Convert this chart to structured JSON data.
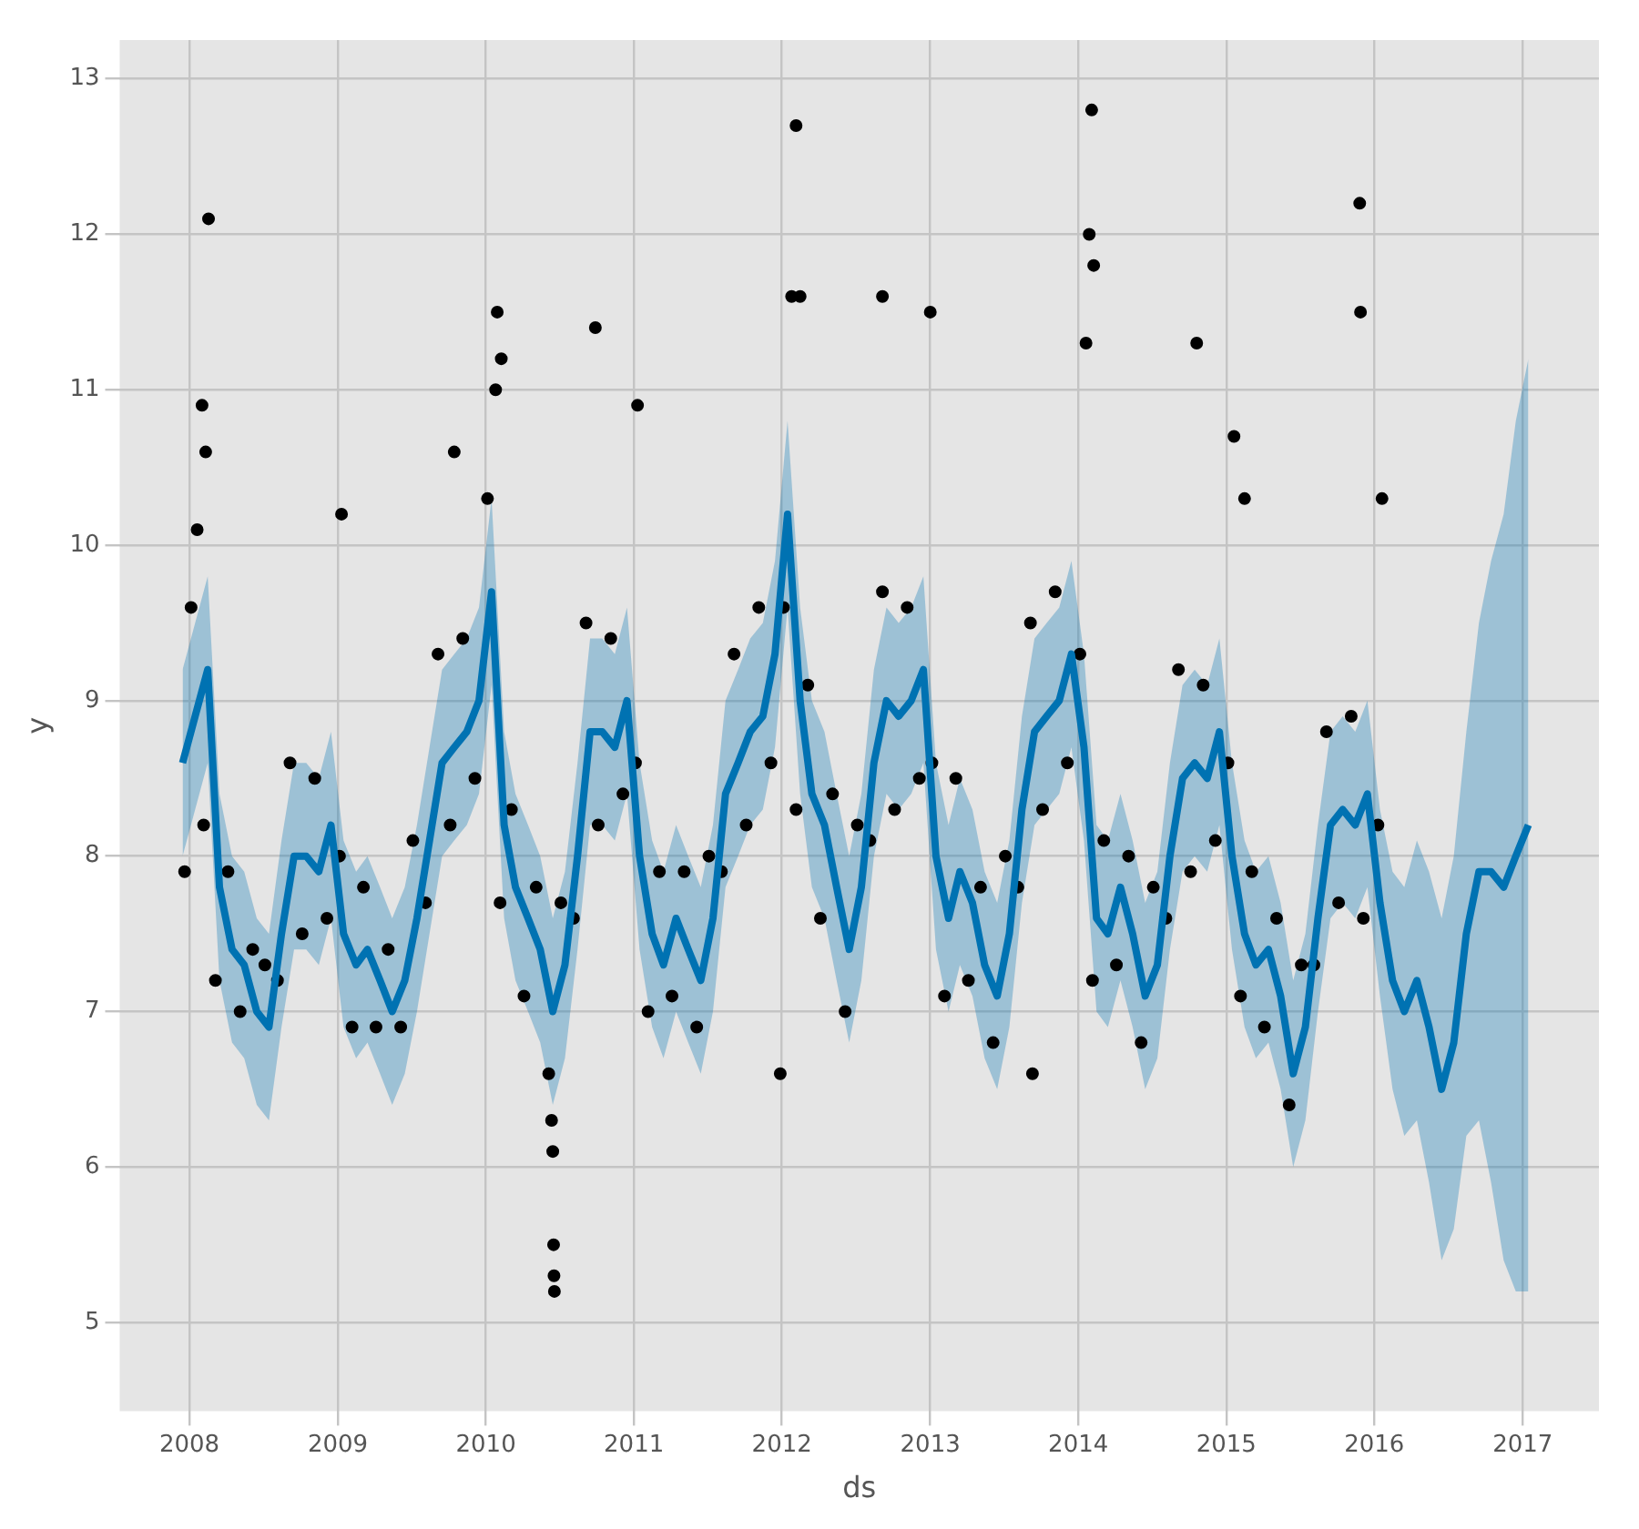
{
  "chart_data": {
    "type": "line",
    "xlabel": "ds",
    "ylabel": "y",
    "xlim": [
      "2007-07-13",
      "2017-07-08"
    ],
    "ylim": [
      4.43,
      13.25
    ],
    "xticks": [
      "2008",
      "2009",
      "2010",
      "2011",
      "2012",
      "2013",
      "2014",
      "2015",
      "2016",
      "2017"
    ],
    "yticks": [
      5,
      6,
      7,
      8,
      9,
      10,
      11,
      12,
      13
    ],
    "grid": true,
    "series": [
      {
        "color": "#0072b2",
        "marker": "none",
        "x": [
          "2007-12-15",
          "2008-01-15",
          "2008-02-15",
          "2008-03-15",
          "2008-04-15",
          "2008-05-15",
          "2008-06-15",
          "2008-07-15",
          "2008-08-15",
          "2008-09-15",
          "2008-10-15",
          "2008-11-15",
          "2008-12-15",
          "2009-01-15",
          "2009-02-15",
          "2009-03-15",
          "2009-04-15",
          "2009-05-15",
          "2009-06-15",
          "2009-07-15",
          "2009-08-15",
          "2009-09-15",
          "2009-10-15",
          "2009-11-15",
          "2009-12-15",
          "2010-01-15",
          "2010-02-15",
          "2010-03-15",
          "2010-04-15",
          "2010-05-15",
          "2010-06-15",
          "2010-07-15",
          "2010-08-15",
          "2010-09-15",
          "2010-10-15",
          "2010-11-15",
          "2010-12-15",
          "2011-01-15",
          "2011-02-15",
          "2011-03-15",
          "2011-04-15",
          "2011-05-15",
          "2011-06-15",
          "2011-07-15",
          "2011-08-15",
          "2011-09-15",
          "2011-10-15",
          "2011-11-15",
          "2011-12-15",
          "2012-01-15",
          "2012-02-15",
          "2012-03-15",
          "2012-04-15",
          "2012-05-15",
          "2012-06-15",
          "2012-07-15",
          "2012-08-15",
          "2012-09-15",
          "2012-10-15",
          "2012-11-15",
          "2012-12-15",
          "2013-01-15",
          "2013-02-15",
          "2013-03-15",
          "2013-04-15",
          "2013-05-15",
          "2013-06-15",
          "2013-07-15",
          "2013-08-15",
          "2013-09-15",
          "2013-10-15",
          "2013-11-15",
          "2013-12-15",
          "2014-01-15",
          "2014-02-15",
          "2014-03-15",
          "2014-04-15",
          "2014-05-15",
          "2014-06-15",
          "2014-07-15",
          "2014-08-15",
          "2014-09-15",
          "2014-10-15",
          "2014-11-15",
          "2014-12-15",
          "2015-01-15",
          "2015-02-15",
          "2015-03-15",
          "2015-04-15",
          "2015-05-15",
          "2015-06-15",
          "2015-07-15",
          "2015-08-15",
          "2015-09-15",
          "2015-10-15",
          "2015-11-15",
          "2015-12-15",
          "2016-01-15",
          "2016-02-15",
          "2016-03-15",
          "2016-04-15",
          "2016-05-15",
          "2016-06-15",
          "2016-07-15",
          "2016-08-15",
          "2016-09-15",
          "2016-10-15",
          "2016-11-15",
          "2016-12-15",
          "2017-01-15"
        ],
        "values": [
          8.6,
          8.9,
          9.2,
          7.8,
          7.4,
          7.3,
          7.0,
          6.9,
          7.5,
          8.0,
          8.0,
          7.9,
          8.2,
          7.5,
          7.3,
          7.4,
          7.2,
          7.0,
          7.2,
          7.6,
          8.1,
          8.6,
          8.7,
          8.8,
          9.0,
          9.7,
          8.2,
          7.8,
          7.6,
          7.4,
          7.0,
          7.3,
          8.0,
          8.8,
          8.8,
          8.7,
          9.0,
          8.0,
          7.5,
          7.3,
          7.6,
          7.4,
          7.2,
          7.6,
          8.4,
          8.6,
          8.8,
          8.9,
          9.3,
          10.2,
          9.0,
          8.4,
          8.2,
          7.8,
          7.4,
          7.8,
          8.6,
          9.0,
          8.9,
          9.0,
          9.2,
          8.0,
          7.6,
          7.9,
          7.7,
          7.3,
          7.1,
          7.5,
          8.3,
          8.8,
          8.9,
          9.0,
          9.3,
          8.7,
          7.6,
          7.5,
          7.8,
          7.5,
          7.1,
          7.3,
          8.0,
          8.5,
          8.6,
          8.5,
          8.8,
          8.0,
          7.5,
          7.3,
          7.4,
          7.1,
          6.6,
          6.9,
          7.6,
          8.2,
          8.3,
          8.2,
          8.4,
          7.7,
          7.2,
          7.0,
          7.2,
          6.9,
          6.5,
          6.8,
          7.5,
          7.9,
          7.9,
          7.8,
          8.0,
          8.2
        ],
        "lower": [
          8.0,
          8.3,
          8.6,
          7.2,
          6.8,
          6.7,
          6.4,
          6.3,
          6.9,
          7.4,
          7.4,
          7.3,
          7.6,
          6.9,
          6.7,
          6.8,
          6.6,
          6.4,
          6.6,
          7.0,
          7.5,
          8.0,
          8.1,
          8.2,
          8.4,
          9.1,
          7.6,
          7.2,
          7.0,
          6.8,
          6.4,
          6.7,
          7.4,
          8.2,
          8.2,
          8.1,
          8.4,
          7.4,
          6.9,
          6.7,
          7.0,
          6.8,
          6.6,
          7.0,
          7.8,
          8.0,
          8.2,
          8.3,
          8.7,
          9.6,
          8.4,
          7.8,
          7.6,
          7.2,
          6.8,
          7.2,
          8.0,
          8.4,
          8.3,
          8.4,
          8.6,
          7.4,
          7.0,
          7.3,
          7.1,
          6.7,
          6.5,
          6.9,
          7.7,
          8.2,
          8.3,
          8.4,
          8.7,
          8.1,
          7.0,
          6.9,
          7.2,
          6.9,
          6.5,
          6.7,
          7.4,
          7.9,
          8.0,
          7.9,
          8.2,
          7.4,
          6.9,
          6.7,
          6.8,
          6.5,
          6.0,
          6.3,
          7.0,
          7.6,
          7.7,
          7.6,
          7.8,
          7.1,
          6.5,
          6.2,
          6.3,
          5.9,
          5.4,
          5.6,
          6.2,
          6.3,
          5.9,
          5.4,
          5.2,
          5.2
        ],
        "upper": [
          9.2,
          9.5,
          9.8,
          8.4,
          8.0,
          7.9,
          7.6,
          7.5,
          8.1,
          8.6,
          8.6,
          8.5,
          8.8,
          8.1,
          7.9,
          8.0,
          7.8,
          7.6,
          7.8,
          8.2,
          8.7,
          9.2,
          9.3,
          9.4,
          9.6,
          10.3,
          8.8,
          8.4,
          8.2,
          8.0,
          7.6,
          7.9,
          8.6,
          9.4,
          9.4,
          9.3,
          9.6,
          8.6,
          8.1,
          7.9,
          8.2,
          8.0,
          7.8,
          8.2,
          9.0,
          9.2,
          9.4,
          9.5,
          9.9,
          10.8,
          9.6,
          9.0,
          8.8,
          8.4,
          8.0,
          8.4,
          9.2,
          9.6,
          9.5,
          9.6,
          9.8,
          8.6,
          8.2,
          8.5,
          8.3,
          7.9,
          7.7,
          8.1,
          8.9,
          9.4,
          9.5,
          9.6,
          9.9,
          9.3,
          8.2,
          8.1,
          8.4,
          8.1,
          7.7,
          7.9,
          8.6,
          9.1,
          9.2,
          9.1,
          9.4,
          8.6,
          8.1,
          7.9,
          8.0,
          7.7,
          7.2,
          7.5,
          8.2,
          8.8,
          8.9,
          8.8,
          9.0,
          8.3,
          7.9,
          7.8,
          8.1,
          7.9,
          7.6,
          8.0,
          8.8,
          9.5,
          9.9,
          10.2,
          10.8,
          11.2
        ]
      },
      {
        "type": "scatter",
        "color": "#000000",
        "marker": "circle",
        "x": [
          "2007-12-20",
          "2008-01-05",
          "2008-02-05",
          "2008-03-05",
          "2008-04-05",
          "2008-05-05",
          "2008-06-05",
          "2008-07-05",
          "2008-08-05",
          "2008-09-05",
          "2008-10-05",
          "2008-11-05",
          "2008-12-05",
          "2009-01-05",
          "2009-02-05",
          "2009-03-05",
          "2009-04-05",
          "2009-05-05",
          "2009-06-05",
          "2009-07-05",
          "2009-08-05",
          "2009-09-05",
          "2009-10-05",
          "2009-11-05",
          "2009-12-05",
          "2010-01-05",
          "2010-02-05",
          "2010-03-05",
          "2010-04-05",
          "2010-05-05",
          "2010-06-05",
          "2010-07-05",
          "2010-08-05",
          "2010-09-05",
          "2010-10-05",
          "2010-11-05",
          "2010-12-05",
          "2011-01-05",
          "2011-02-05",
          "2011-03-05",
          "2011-04-05",
          "2011-05-05",
          "2011-06-05",
          "2011-07-05",
          "2011-08-05",
          "2011-09-05",
          "2011-10-05",
          "2011-11-05",
          "2011-12-05",
          "2012-01-05",
          "2012-02-05",
          "2012-03-05",
          "2012-04-05",
          "2012-05-05",
          "2012-06-05",
          "2012-07-05",
          "2012-08-05",
          "2012-09-05",
          "2012-10-05",
          "2012-11-05",
          "2012-12-05",
          "2013-01-05",
          "2013-02-05",
          "2013-03-05",
          "2013-04-05",
          "2013-05-05",
          "2013-06-05",
          "2013-07-05",
          "2013-08-05",
          "2013-09-05",
          "2013-10-05",
          "2013-11-05",
          "2013-12-05",
          "2014-01-05",
          "2014-02-05",
          "2014-03-05",
          "2014-04-05",
          "2014-05-05",
          "2014-06-05",
          "2014-07-05",
          "2014-08-05",
          "2014-09-05",
          "2014-10-05",
          "2014-11-05",
          "2014-12-05",
          "2015-01-05",
          "2015-02-05",
          "2015-03-05",
          "2015-04-05",
          "2015-05-05",
          "2015-06-05",
          "2015-07-05",
          "2015-08-05",
          "2015-09-05",
          "2015-10-05",
          "2015-11-05",
          "2015-12-05",
          "2016-01-10",
          "2008-01-20",
          "2008-02-01",
          "2008-02-10",
          "2008-02-17",
          "2009-01-10",
          "2009-10-15",
          "2010-01-25",
          "2010-01-29",
          "2010-02-08",
          "2010-06-12",
          "2010-06-15",
          "2010-06-17",
          "2010-06-18",
          "2010-06-19",
          "2010-09-28",
          "2011-01-10",
          "2011-12-28",
          "2012-01-25",
          "2012-02-05",
          "2012-02-15",
          "2012-09-05",
          "2013-01-01",
          "2013-09-10",
          "2014-01-20",
          "2014-01-28",
          "2014-02-03",
          "2014-02-08",
          "2014-10-20",
          "2015-01-20",
          "2015-02-15",
          "2015-11-26",
          "2015-11-28",
          "2016-01-20"
        ],
        "values": [
          7.9,
          9.6,
          8.2,
          7.2,
          7.9,
          7.0,
          7.4,
          7.3,
          7.2,
          8.6,
          7.5,
          8.5,
          7.6,
          8.0,
          6.9,
          7.8,
          6.9,
          7.4,
          6.9,
          8.1,
          7.7,
          9.3,
          8.2,
          9.4,
          8.5,
          10.3,
          7.7,
          8.3,
          7.1,
          7.8,
          6.6,
          7.7,
          7.6,
          9.5,
          8.2,
          9.4,
          8.4,
          8.6,
          7.0,
          7.9,
          7.1,
          7.9,
          6.9,
          8.0,
          7.9,
          9.3,
          8.2,
          9.6,
          8.6,
          9.6,
          8.3,
          9.1,
          7.6,
          8.4,
          7.0,
          8.2,
          8.1,
          9.7,
          8.3,
          9.6,
          8.5,
          8.6,
          7.1,
          8.5,
          7.2,
          7.8,
          6.8,
          8.0,
          7.8,
          9.5,
          8.3,
          9.7,
          8.6,
          9.3,
          7.2,
          8.1,
          7.3,
          8.0,
          6.8,
          7.8,
          7.6,
          9.2,
          7.9,
          9.1,
          8.1,
          8.6,
          7.1,
          7.9,
          6.9,
          7.6,
          6.4,
          7.3,
          7.3,
          8.8,
          7.7,
          8.9,
          7.6,
          8.2,
          10.1,
          10.9,
          10.6,
          12.1,
          10.2,
          10.6,
          11.0,
          11.5,
          11.2,
          6.3,
          6.1,
          5.5,
          5.3,
          5.2,
          11.4,
          10.9,
          6.6,
          11.6,
          12.7,
          11.6,
          11.6,
          11.5,
          6.6,
          11.3,
          12.0,
          12.8,
          11.8,
          11.3,
          10.7,
          10.3,
          12.2,
          11.5,
          10.3
        ]
      }
    ]
  }
}
